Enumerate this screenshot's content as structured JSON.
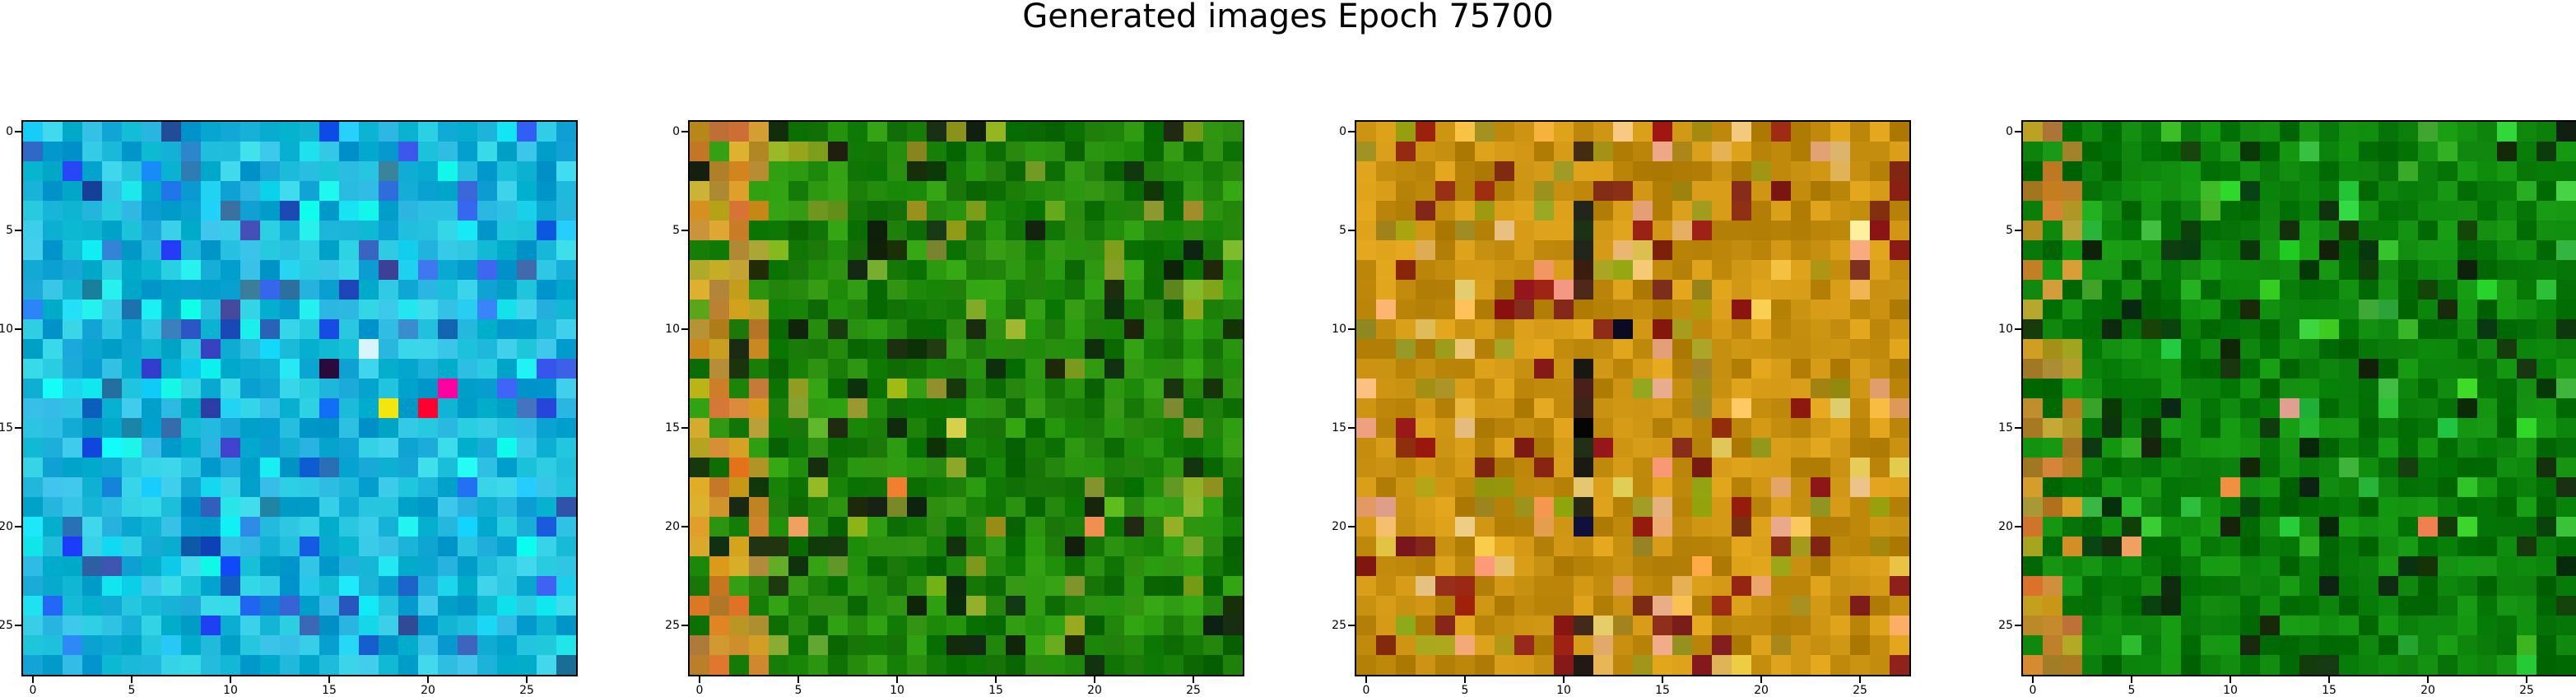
{
  "figure": {
    "title": "Generated images Epoch 75700"
  },
  "chart_data": [
    {
      "type": "heatmap",
      "subtype": "rgb-image",
      "name": "generated-image-1",
      "grid": [
        28,
        28
      ],
      "xlim": [
        -0.5,
        27.5
      ],
      "ylim": [
        27.5,
        -0.5
      ],
      "xticks": [
        0,
        5,
        10,
        15,
        20,
        25
      ],
      "yticks": [
        0,
        5,
        10,
        15,
        20,
        25
      ],
      "palette": "cyan-blue",
      "base_color": "#1aa7d9",
      "notable_pixels": [
        {
          "x": 20,
          "y": 14,
          "color": "#ff0030"
        },
        {
          "x": 18,
          "y": 14,
          "color": "#f2e60d"
        },
        {
          "x": 21,
          "y": 13,
          "color": "#ff00a0"
        },
        {
          "x": 15,
          "y": 12,
          "color": "#2a0a3a"
        },
        {
          "x": 17,
          "y": 11,
          "color": "#d6f5ff"
        }
      ]
    },
    {
      "type": "heatmap",
      "subtype": "rgb-image",
      "name": "generated-image-2",
      "grid": [
        28,
        28
      ],
      "xlim": [
        -0.5,
        27.5
      ],
      "ylim": [
        27.5,
        -0.5
      ],
      "xticks": [
        0,
        5,
        10,
        15,
        20,
        25
      ],
      "yticks": [
        0,
        5,
        10,
        15,
        20,
        25
      ],
      "palette": "green-olive",
      "base_color": "#1e7a0a",
      "notable_pixels": [
        {
          "x": 5,
          "y": 20,
          "color": "#f0a060"
        },
        {
          "x": 20,
          "y": 20,
          "color": "#f09050"
        },
        {
          "x": 10,
          "y": 18,
          "color": "#f08030"
        },
        {
          "x": 13,
          "y": 15,
          "color": "#d6d04a"
        }
      ]
    },
    {
      "type": "heatmap",
      "subtype": "rgb-image",
      "name": "generated-image-3",
      "grid": [
        28,
        28
      ],
      "xlim": [
        -0.5,
        27.5
      ],
      "ylim": [
        27.5,
        -0.5
      ],
      "xticks": [
        0,
        5,
        10,
        15,
        20,
        25
      ],
      "yticks": [
        0,
        5,
        10,
        15,
        20,
        25
      ],
      "palette": "amber-orange",
      "base_color": "#c89010",
      "notable_pixels": [
        {
          "x": 11,
          "y": 20,
          "color": "#10103a"
        },
        {
          "x": 11,
          "y": 15,
          "color": "#050505"
        },
        {
          "x": 7,
          "y": 9,
          "color": "#8a1010"
        },
        {
          "x": 25,
          "y": 5,
          "color": "#fff0a0"
        },
        {
          "x": 13,
          "y": 10,
          "color": "#0a0a20"
        }
      ]
    },
    {
      "type": "heatmap",
      "subtype": "rgb-image",
      "name": "generated-image-4",
      "grid": [
        28,
        28
      ],
      "xlim": [
        -0.5,
        27.5
      ],
      "ylim": [
        27.5,
        -0.5
      ],
      "xticks": [
        0,
        5,
        10,
        15,
        20,
        25
      ],
      "yticks": [
        0,
        5,
        10,
        15,
        20,
        25
      ],
      "palette": "deep-green",
      "base_color": "#0a7a0a",
      "notable_pixels": [
        {
          "x": 5,
          "y": 21,
          "color": "#f0a060"
        },
        {
          "x": 10,
          "y": 18,
          "color": "#f09040"
        },
        {
          "x": 20,
          "y": 20,
          "color": "#f08050"
        },
        {
          "x": 13,
          "y": 14,
          "color": "#e0a090"
        }
      ]
    }
  ]
}
